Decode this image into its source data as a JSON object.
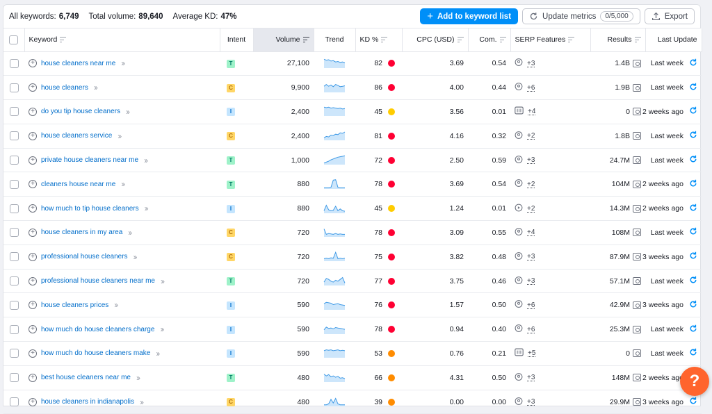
{
  "summary": {
    "all_keywords_label": "All keywords:",
    "all_keywords_value": "6,749",
    "total_volume_label": "Total volume:",
    "total_volume_value": "89,640",
    "avg_kd_label": "Average KD:",
    "avg_kd_value": "47%"
  },
  "toolbar": {
    "add_label": "Add to keyword list",
    "update_label": "Update metrics",
    "update_quota": "0/5,000",
    "export_label": "Export"
  },
  "columns": {
    "keyword": "Keyword",
    "intent": "Intent",
    "volume": "Volume",
    "trend": "Trend",
    "kd": "KD %",
    "cpc": "CPC (USD)",
    "com": "Com.",
    "serp": "SERP Features",
    "results": "Results",
    "last_update": "Last Update"
  },
  "colors": {
    "accent": "#008ff8",
    "kd_hard": "#ff0033",
    "kd_medium": "#ff8c00",
    "kd_possible": "#ffcc00",
    "intent_T_bg": "#9ef2c9",
    "intent_C_bg": "#ffd666",
    "intent_I_bg": "#c4e5fe",
    "help": "#ff642d"
  },
  "rows": [
    {
      "keyword": "house cleaners near me",
      "intent": "T",
      "volume": "27,100",
      "trend": [
        0.9,
        0.8,
        0.85,
        0.7,
        0.75,
        0.6,
        0.65,
        0.55,
        0.6,
        0.5
      ],
      "kd": "82",
      "kd_level": "hard",
      "cpc": "3.69",
      "com": "0.54",
      "serp_icon": "location-pin-icon",
      "serp_count": "+3",
      "results": "1.4B",
      "last_update": "Last week"
    },
    {
      "keyword": "house cleaners",
      "intent": "C",
      "volume": "9,900",
      "trend": [
        0.6,
        0.8,
        0.6,
        0.75,
        0.55,
        0.8,
        0.7,
        0.55,
        0.6,
        0.65
      ],
      "kd": "86",
      "kd_level": "hard",
      "cpc": "4.00",
      "com": "0.44",
      "serp_icon": "location-pin-icon",
      "serp_count": "+6",
      "results": "1.9B",
      "last_update": "Last week"
    },
    {
      "keyword": "do you tip house cleaners",
      "intent": "I",
      "volume": "2,400",
      "trend": [
        0.9,
        0.85,
        0.9,
        0.8,
        0.85,
        0.8,
        0.75,
        0.8,
        0.7,
        0.75
      ],
      "kd": "45",
      "kd_level": "possible",
      "cpc": "3.56",
      "com": "0.01",
      "serp_icon": "image-icon",
      "serp_count": "+4",
      "results": "0",
      "last_update": "2 weeks ago"
    },
    {
      "keyword": "house cleaners service",
      "intent": "C",
      "volume": "2,400",
      "trend": [
        0.2,
        0.35,
        0.3,
        0.5,
        0.45,
        0.6,
        0.55,
        0.75,
        0.7,
        0.85
      ],
      "kd": "81",
      "kd_level": "hard",
      "cpc": "4.16",
      "com": "0.32",
      "serp_icon": "location-pin-icon",
      "serp_count": "+2",
      "results": "1.8B",
      "last_update": "Last week"
    },
    {
      "keyword": "private house cleaners near me",
      "intent": "T",
      "volume": "1,000",
      "trend": [
        0.1,
        0.2,
        0.3,
        0.45,
        0.55,
        0.65,
        0.75,
        0.8,
        0.85,
        0.9
      ],
      "kd": "72",
      "kd_level": "hard",
      "cpc": "2.50",
      "com": "0.59",
      "serp_icon": "location-pin-icon",
      "serp_count": "+3",
      "results": "24.7M",
      "last_update": "Last week"
    },
    {
      "keyword": "cleaners house near me",
      "intent": "T",
      "volume": "880",
      "trend": [
        0.05,
        0.05,
        0.05,
        0.1,
        0.9,
        0.95,
        0.1,
        0.05,
        0.05,
        0.05
      ],
      "kd": "78",
      "kd_level": "hard",
      "cpc": "3.69",
      "com": "0.54",
      "serp_icon": "location-pin-icon",
      "serp_count": "+2",
      "results": "104M",
      "last_update": "2 weeks ago"
    },
    {
      "keyword": "how much to tip house cleaners",
      "intent": "I",
      "volume": "880",
      "trend": [
        0.2,
        0.8,
        0.3,
        0.2,
        0.25,
        0.7,
        0.2,
        0.4,
        0.2,
        0.15
      ],
      "kd": "45",
      "kd_level": "possible",
      "cpc": "1.24",
      "com": "0.01",
      "serp_icon": "play-icon",
      "serp_count": "+2",
      "results": "14.3M",
      "last_update": "2 weeks ago"
    },
    {
      "keyword": "house cleaners in my area",
      "intent": "C",
      "volume": "720",
      "trend": [
        0.8,
        0.2,
        0.3,
        0.25,
        0.2,
        0.3,
        0.2,
        0.25,
        0.2,
        0.2
      ],
      "kd": "78",
      "kd_level": "hard",
      "cpc": "3.09",
      "com": "0.55",
      "serp_icon": "location-pin-icon",
      "serp_count": "+4",
      "results": "108M",
      "last_update": "Last week"
    },
    {
      "keyword": "professional house cleaners",
      "intent": "C",
      "volume": "720",
      "trend": [
        0.2,
        0.25,
        0.2,
        0.3,
        0.25,
        0.9,
        0.2,
        0.25,
        0.2,
        0.25
      ],
      "kd": "75",
      "kd_level": "hard",
      "cpc": "3.82",
      "com": "0.48",
      "serp_icon": "location-pin-icon",
      "serp_count": "+3",
      "results": "87.9M",
      "last_update": "3 weeks ago"
    },
    {
      "keyword": "professional house cleaners near me",
      "intent": "T",
      "volume": "720",
      "trend": [
        0.3,
        0.7,
        0.6,
        0.4,
        0.3,
        0.5,
        0.4,
        0.6,
        0.8,
        0.2
      ],
      "kd": "77",
      "kd_level": "hard",
      "cpc": "3.75",
      "com": "0.46",
      "serp_icon": "location-pin-icon",
      "serp_count": "+3",
      "results": "57.1M",
      "last_update": "Last week"
    },
    {
      "keyword": "house cleaners prices",
      "intent": "I",
      "volume": "590",
      "trend": [
        0.6,
        0.75,
        0.7,
        0.65,
        0.5,
        0.55,
        0.6,
        0.5,
        0.45,
        0.4
      ],
      "kd": "76",
      "kd_level": "hard",
      "cpc": "1.57",
      "com": "0.50",
      "serp_icon": "location-pin-icon",
      "serp_count": "+6",
      "results": "42.9M",
      "last_update": "3 weeks ago"
    },
    {
      "keyword": "how much do house cleaners charge",
      "intent": "I",
      "volume": "590",
      "trend": [
        0.4,
        0.7,
        0.55,
        0.6,
        0.5,
        0.65,
        0.6,
        0.55,
        0.5,
        0.45
      ],
      "kd": "78",
      "kd_level": "hard",
      "cpc": "0.94",
      "com": "0.40",
      "serp_icon": "location-pin-icon",
      "serp_count": "+6",
      "results": "25.3M",
      "last_update": "Last week"
    },
    {
      "keyword": "how much do house cleaners make",
      "intent": "I",
      "volume": "590",
      "trend": [
        0.7,
        0.8,
        0.75,
        0.8,
        0.7,
        0.75,
        0.8,
        0.7,
        0.75,
        0.7
      ],
      "kd": "53",
      "kd_level": "medium",
      "cpc": "0.76",
      "com": "0.21",
      "serp_icon": "image-icon",
      "serp_count": "+5",
      "results": "0",
      "last_update": "Last week"
    },
    {
      "keyword": "best house cleaners near me",
      "intent": "T",
      "volume": "480",
      "trend": [
        0.8,
        0.6,
        0.75,
        0.5,
        0.6,
        0.45,
        0.55,
        0.35,
        0.4,
        0.3
      ],
      "kd": "66",
      "kd_level": "medium",
      "cpc": "4.31",
      "com": "0.50",
      "serp_icon": "location-pin-icon",
      "serp_count": "+3",
      "results": "148M",
      "last_update": "2 weeks ago"
    },
    {
      "keyword": "house cleaners in indianapolis",
      "intent": "C",
      "volume": "480",
      "trend": [
        0.1,
        0.1,
        0.2,
        0.7,
        0.3,
        0.8,
        0.2,
        0.1,
        0.1,
        0.1
      ],
      "kd": "39",
      "kd_level": "medium",
      "cpc": "0.00",
      "com": "0.00",
      "serp_icon": "location-pin-icon",
      "serp_count": "+3",
      "results": "29.9M",
      "last_update": "3 weeks ago"
    }
  ],
  "help": {
    "label": "?"
  }
}
